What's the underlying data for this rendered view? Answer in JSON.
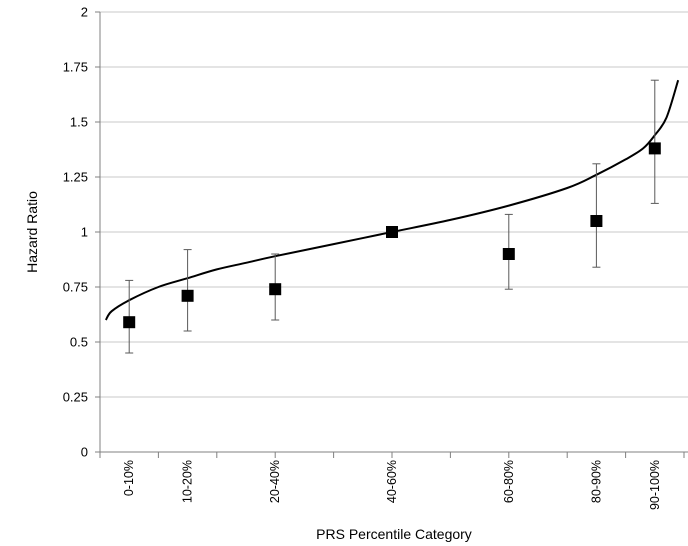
{
  "chart_data": {
    "type": "scatter",
    "title": "",
    "xlabel": "PRS Percentile Category",
    "ylabel": "Hazard Ratio",
    "ylim": [
      0,
      2
    ],
    "yticks": [
      "0",
      "0.25",
      "0.5",
      "0.75",
      "1",
      "1.25",
      "1.5",
      "1.75",
      "2"
    ],
    "grid": "horizontal",
    "legend": "none",
    "x_range_percentile": [
      0,
      100
    ],
    "categories": [
      "0-10%",
      "10-20%",
      "20-40%",
      "40-60%",
      "60-80%",
      "80-90%",
      "90-100%"
    ],
    "category_midpoints": [
      5,
      15,
      30,
      50,
      70,
      85,
      95
    ],
    "points": [
      {
        "category": "0-10%",
        "hr": 0.59,
        "ci_low": 0.45,
        "ci_high": 0.78
      },
      {
        "category": "10-20%",
        "hr": 0.71,
        "ci_low": 0.55,
        "ci_high": 0.92
      },
      {
        "category": "20-40%",
        "hr": 0.74,
        "ci_low": 0.6,
        "ci_high": 0.9
      },
      {
        "category": "40-60%",
        "hr": 1.0,
        "ci_low": 1.0,
        "ci_high": 1.0
      },
      {
        "category": "60-80%",
        "hr": 0.9,
        "ci_low": 0.74,
        "ci_high": 1.08
      },
      {
        "category": "80-90%",
        "hr": 1.05,
        "ci_low": 0.84,
        "ci_high": 1.31
      },
      {
        "category": "90-100%",
        "hr": 1.38,
        "ci_low": 1.13,
        "ci_high": 1.69
      }
    ],
    "curve": {
      "type": "line",
      "x": [
        1,
        2,
        5,
        10,
        15,
        20,
        25,
        30,
        40,
        50,
        60,
        70,
        80,
        85,
        90,
        93,
        95,
        97,
        99
      ],
      "y": [
        0.6,
        0.64,
        0.69,
        0.75,
        0.79,
        0.83,
        0.86,
        0.89,
        0.945,
        1.0,
        1.055,
        1.12,
        1.2,
        1.26,
        1.33,
        1.38,
        1.44,
        1.52,
        1.69
      ]
    },
    "colors": {
      "marker": "#000000",
      "curve": "#000000",
      "error_bar": "#595959",
      "grid": "#c8c8c8",
      "axis": "#808080"
    }
  }
}
